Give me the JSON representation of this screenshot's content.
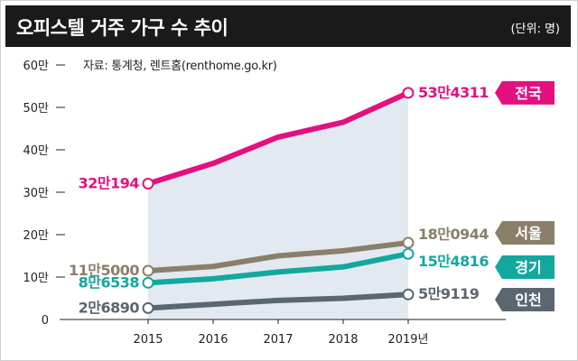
{
  "header": {
    "title": "오피스텔 거주 가구 수 추이",
    "unit": "(단위: 명)"
  },
  "source": "자료: 통계청, 렌트홈(renthome.go.kr)",
  "colors": {
    "header_bg": "#1a1a1a",
    "area_fill": "#e3e9f1",
    "axis": "#222222",
    "national": "#e2117f",
    "seoul": "#8a7f6a",
    "gyeonggi": "#13a89e",
    "incheon": "#5a6670"
  },
  "chart_data": {
    "type": "line",
    "title": "오피스텔 거주 가구 수 추이",
    "unit": "(단위: 명)",
    "categories": [
      "2015",
      "2016",
      "2017",
      "2018",
      "2019년"
    ],
    "ylim": [
      0,
      600000
    ],
    "yticks": [
      {
        "value": 0,
        "label": "0"
      },
      {
        "value": 100000,
        "label": "10만"
      },
      {
        "value": 200000,
        "label": "20만"
      },
      {
        "value": 300000,
        "label": "30만"
      },
      {
        "value": 400000,
        "label": "40만"
      },
      {
        "value": 500000,
        "label": "50만"
      },
      {
        "value": 600000,
        "label": "60만"
      }
    ],
    "shaded_area_series": "national",
    "series": [
      {
        "key": "national",
        "name": "전국",
        "color": "#e2117f",
        "values": [
          320194,
          368000,
          430000,
          465000,
          534311
        ],
        "start_label": "32만194",
        "end_label": "53만4311"
      },
      {
        "key": "seoul",
        "name": "서울",
        "color": "#8a7f6a",
        "values": [
          115000,
          125000,
          150000,
          162000,
          180944
        ],
        "start_label": "11만5000",
        "end_label": "18만0944"
      },
      {
        "key": "gyeonggi",
        "name": "경기",
        "color": "#13a89e",
        "values": [
          86538,
          96000,
          112000,
          124000,
          154816
        ],
        "start_label": "8만6538",
        "end_label": "15만4816"
      },
      {
        "key": "incheon",
        "name": "인천",
        "color": "#5a6670",
        "values": [
          26890,
          36000,
          45000,
          50000,
          59119
        ],
        "start_label": "2만6890",
        "end_label": "5만9119"
      }
    ]
  }
}
